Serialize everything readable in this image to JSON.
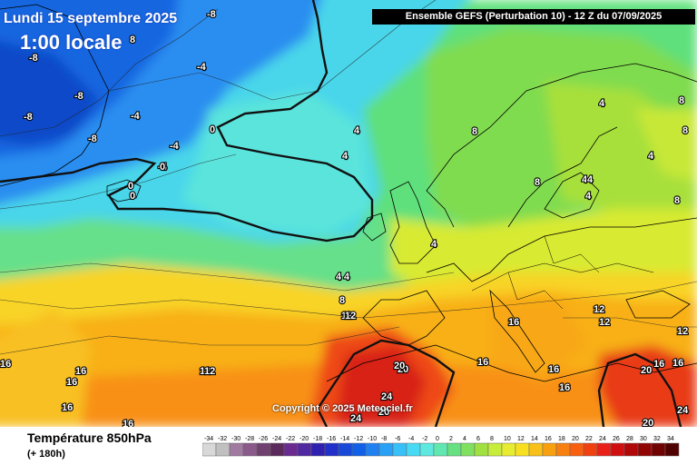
{
  "header": {
    "date": "Lundi 15 septembre 2025",
    "local_time": "1:00 locale",
    "run_info": "Ensemble GEFS  (Perturbation 10)  -  12 Z du 07/09/2025"
  },
  "copyright": "Copyright © 2025 Meteociel.fr",
  "footer": {
    "parameter": "Température 850hPa",
    "lead_time": "(+ 180h)"
  },
  "legend": {
    "ticks": [
      "-34",
      "-32",
      "-30",
      "-28",
      "-26",
      "-24",
      "-22",
      "-20",
      "-18",
      "-16",
      "-14",
      "-12",
      "-10",
      "-8",
      "-6",
      "-4",
      "-2",
      "0",
      "2",
      "4",
      "6",
      "8",
      "10",
      "12",
      "14",
      "16",
      "18",
      "20",
      "22",
      "24",
      "26",
      "28",
      "30",
      "32",
      "34"
    ],
    "colors": [
      "#d8d8d8",
      "#c0c0c0",
      "#a07aa0",
      "#8a5a8a",
      "#70406e",
      "#5a2a5a",
      "#6a2a90",
      "#5028a0",
      "#3020b0",
      "#2030c8",
      "#1848d8",
      "#1060e8",
      "#2080f0",
      "#2aa0f6",
      "#38c0f8",
      "#48daf4",
      "#5ee8e0",
      "#60e8b0",
      "#66e080",
      "#80e060",
      "#a0e040",
      "#c8ec3c",
      "#e8ec30",
      "#f8e020",
      "#f8c018",
      "#f8a010",
      "#f88010",
      "#f86010",
      "#f04010",
      "#e82018",
      "#d01010",
      "#b00808",
      "#900404",
      "#700202",
      "#500000"
    ]
  },
  "contour_labels": [
    {
      "text": "-8"
    },
    {
      "text": "8"
    },
    {
      "text": "-4"
    },
    {
      "text": "-8"
    },
    {
      "text": "-8"
    },
    {
      "text": "-8"
    },
    {
      "text": "-8"
    },
    {
      "text": "-4"
    },
    {
      "text": "-4"
    },
    {
      "text": "-4"
    },
    {
      "text": "0"
    },
    {
      "text": "0"
    },
    {
      "text": "0"
    },
    {
      "text": "0"
    },
    {
      "text": "4"
    },
    {
      "text": "4"
    },
    {
      "text": "4"
    },
    {
      "text": "8"
    },
    {
      "text": "4"
    },
    {
      "text": "8"
    },
    {
      "text": "4"
    },
    {
      "text": "4"
    },
    {
      "text": "8"
    },
    {
      "text": "8"
    },
    {
      "text": "4"
    },
    {
      "text": "8"
    },
    {
      "text": "4"
    },
    {
      "text": "4"
    },
    {
      "text": "4"
    },
    {
      "text": "12"
    },
    {
      "text": "12"
    },
    {
      "text": "12"
    },
    {
      "text": "16"
    },
    {
      "text": "12"
    },
    {
      "text": "12"
    },
    {
      "text": "16"
    },
    {
      "text": "16"
    },
    {
      "text": "16"
    },
    {
      "text": "16"
    },
    {
      "text": "12"
    },
    {
      "text": "16"
    },
    {
      "text": "16"
    },
    {
      "text": "20"
    },
    {
      "text": "24"
    },
    {
      "text": "24"
    },
    {
      "text": "20"
    },
    {
      "text": "16"
    },
    {
      "text": "20"
    },
    {
      "text": "16"
    },
    {
      "text": "20"
    },
    {
      "text": "24"
    },
    {
      "text": "20"
    },
    {
      "text": "8"
    },
    {
      "text": "12"
    },
    {
      "text": "16"
    },
    {
      "text": "16"
    }
  ]
}
